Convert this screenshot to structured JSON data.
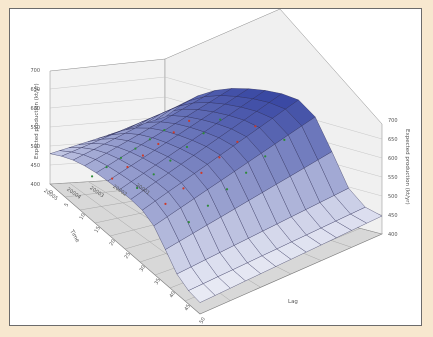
{
  "chart_data": {
    "type": "surface3d",
    "title": "",
    "axes": {
      "left_z_label": "Expected production (kt/yr)",
      "right_z_label": "Expected production (kt/yr)",
      "depth_label": "Time",
      "depth_ticks": [
        "20005",
        "20004",
        "20003",
        "20002",
        "20001"
      ],
      "x_label": "Lag",
      "x_ticks": [
        "0",
        "5",
        "10",
        "15",
        "20",
        "25",
        "30",
        "35",
        "40",
        "45",
        "50"
      ],
      "z_ticks": [
        "400",
        "450",
        "500",
        "550",
        "600",
        "650",
        "700"
      ]
    },
    "surface": {
      "rows": 12,
      "cols": 13,
      "edge_profile": [
        0.45,
        0.6,
        0.72,
        0.8,
        0.85,
        0.88,
        0.9,
        0.9,
        0.86,
        0.6,
        0.28,
        0.14,
        0.1
      ]
    },
    "colors": {
      "surface_high": "#2a3a9c",
      "surface_low": "#ffffff",
      "grid_line": "#222244",
      "marker_green": "#2e8a3a",
      "marker_red": "#cc3a2a",
      "floor": "#d8d8d8"
    }
  }
}
